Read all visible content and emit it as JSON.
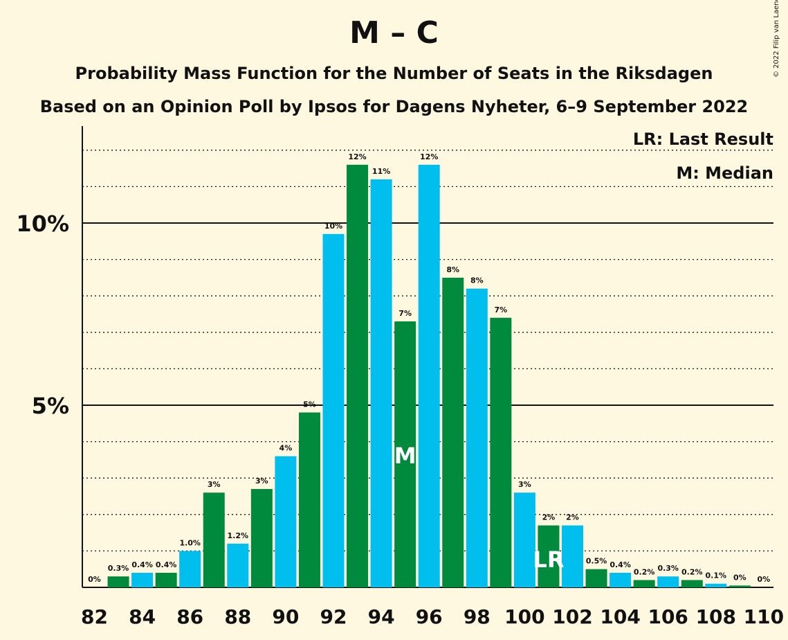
{
  "title": "M – C",
  "subtitle_line1": "Probability Mass Function for the Number of Seats in the Riksdagen",
  "subtitle_line2": "Based on an Opinion Poll by Ipsos for Dagens Nyheter, 6–9 September 2022",
  "copyright": "© 2022 Filip van Laenen",
  "legend": {
    "last_result": "LR: Last Result",
    "median": "M: Median"
  },
  "colors": {
    "background": "#fff8e1",
    "green": "#008a3e",
    "blue": "#00bfee",
    "text": "#111111"
  },
  "chart_data": {
    "type": "bar",
    "x": [
      82,
      83,
      84,
      85,
      86,
      87,
      88,
      89,
      90,
      91,
      92,
      93,
      94,
      95,
      96,
      97,
      98,
      99,
      100,
      101,
      102,
      103,
      104,
      105,
      106,
      107,
      108,
      109,
      110
    ],
    "values": [
      0,
      0.3,
      0.4,
      0.4,
      1.0,
      2.6,
      1.2,
      2.7,
      3.6,
      4.8,
      9.7,
      11.6,
      11.2,
      7.3,
      11.6,
      8.5,
      8.2,
      7.4,
      2.6,
      1.7,
      1.7,
      0.5,
      0.4,
      0.2,
      0.3,
      0.2,
      0.1,
      0.05,
      0
    ],
    "labels": [
      "0%",
      "0.3%",
      "0.4%",
      "0.4%",
      "1.0%",
      "3%",
      "1.2%",
      "3%",
      "4%",
      "5%",
      "10%",
      "12%",
      "11%",
      "7%",
      "12%",
      "8%",
      "8%",
      "7%",
      "3%",
      "2%",
      "2%",
      "0.5%",
      "0.4%",
      "0.2%",
      "0.3%",
      "0.2%",
      "0.1%",
      "0%",
      "0%"
    ],
    "x_ticks": [
      "82",
      "84",
      "86",
      "88",
      "90",
      "92",
      "94",
      "96",
      "98",
      "100",
      "102",
      "104",
      "106",
      "108",
      "110"
    ],
    "y_ticks": [
      {
        "value": 5,
        "label": "5%"
      },
      {
        "value": 10,
        "label": "10%"
      }
    ],
    "ylim": [
      0,
      12.6
    ],
    "median_seat": 95,
    "median_marker": "M",
    "last_result_seat": 101,
    "last_result_marker": "LR",
    "grid": "dotted lines every 1%, solid lines at 5% and 10%"
  }
}
